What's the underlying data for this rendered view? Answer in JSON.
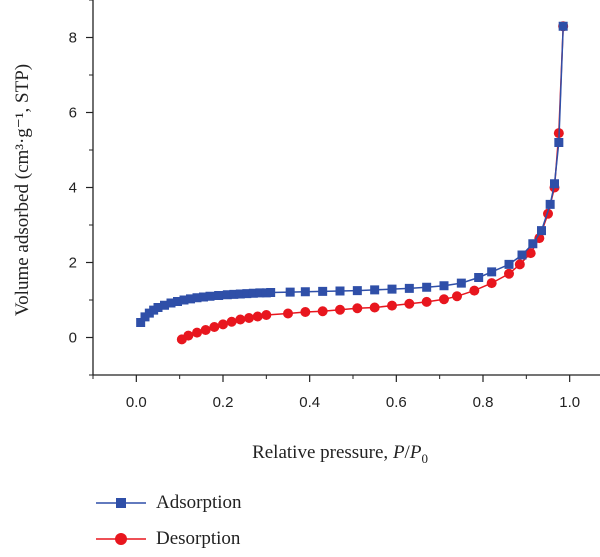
{
  "chart_data": {
    "type": "line",
    "xlabel_prefix": "Relative pressure, ",
    "xlabel_P": "P",
    "xlabel_slash": "/",
    "xlabel_P0": "P",
    "xlabel_P0_sub": "0",
    "ylabel": "Volume adsorbed (cm³·g⁻¹, STP)",
    "xlim": [
      -0.1,
      1.07
    ],
    "ylim": [
      -1,
      9
    ],
    "xticks": [
      "0.0",
      "0.2",
      "0.4",
      "0.6",
      "0.8",
      "1.0"
    ],
    "yticks": [
      "0",
      "2",
      "4",
      "6",
      "8"
    ],
    "legend_position": "bottom-left",
    "series": [
      {
        "name": "Adsorption",
        "color": "#2f4fa8",
        "marker": "square",
        "x": [
          0.01,
          0.02,
          0.03,
          0.04,
          0.05,
          0.065,
          0.08,
          0.095,
          0.11,
          0.125,
          0.14,
          0.155,
          0.17,
          0.19,
          0.21,
          0.225,
          0.24,
          0.255,
          0.27,
          0.285,
          0.3,
          0.31,
          0.355,
          0.39,
          0.43,
          0.47,
          0.51,
          0.55,
          0.59,
          0.63,
          0.67,
          0.71,
          0.75,
          0.79,
          0.82,
          0.86,
          0.89,
          0.915,
          0.935,
          0.955,
          0.965,
          0.975,
          0.985
        ],
        "y": [
          0.4,
          0.55,
          0.65,
          0.73,
          0.8,
          0.86,
          0.92,
          0.96,
          1.0,
          1.03,
          1.06,
          1.08,
          1.1,
          1.12,
          1.14,
          1.15,
          1.16,
          1.17,
          1.18,
          1.19,
          1.19,
          1.2,
          1.21,
          1.22,
          1.23,
          1.24,
          1.25,
          1.27,
          1.29,
          1.31,
          1.34,
          1.38,
          1.45,
          1.6,
          1.75,
          1.95,
          2.2,
          2.5,
          2.85,
          3.55,
          4.1,
          5.2,
          8.3
        ]
      },
      {
        "name": "Desorption",
        "color": "#e8161e",
        "marker": "circle",
        "x": [
          0.105,
          0.12,
          0.14,
          0.16,
          0.18,
          0.2,
          0.22,
          0.24,
          0.26,
          0.28,
          0.3,
          0.35,
          0.39,
          0.43,
          0.47,
          0.51,
          0.55,
          0.59,
          0.63,
          0.67,
          0.71,
          0.74,
          0.78,
          0.82,
          0.86,
          0.885,
          0.91,
          0.93,
          0.95,
          0.965,
          0.975,
          0.985
        ],
        "y": [
          -0.05,
          0.05,
          0.13,
          0.2,
          0.28,
          0.35,
          0.42,
          0.48,
          0.52,
          0.56,
          0.6,
          0.64,
          0.68,
          0.7,
          0.74,
          0.78,
          0.8,
          0.85,
          0.9,
          0.95,
          1.02,
          1.1,
          1.25,
          1.45,
          1.7,
          1.95,
          2.25,
          2.65,
          3.3,
          4.0,
          5.45,
          8.3
        ]
      }
    ]
  }
}
